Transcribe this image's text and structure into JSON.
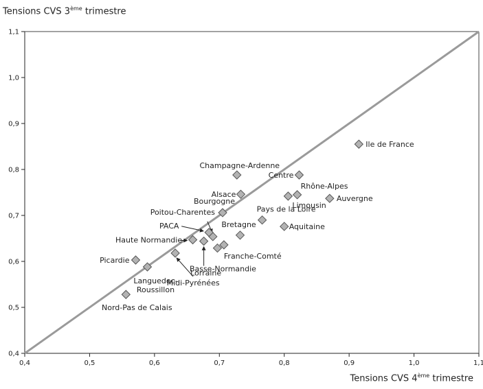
{
  "chart_data": {
    "type": "scatter",
    "ylabel": {
      "prefix": "Tensions CVS 3",
      "sup": "ème",
      "suffix": " trimestre"
    },
    "xlabel": {
      "prefix": "Tensions CVS 4",
      "sup": "ème",
      "suffix": " trimestre"
    },
    "xlim": [
      0.4,
      1.1
    ],
    "ylim": [
      0.4,
      1.1
    ],
    "xticks": [
      "0,4",
      "0,5",
      "0,6",
      "0,7",
      "0,8",
      "0,9",
      "1,0",
      "1,1"
    ],
    "yticks": [
      "0,4",
      "0,5",
      "0,6",
      "0,7",
      "0,8",
      "0,9",
      "1,0",
      "1,1"
    ],
    "grid": false,
    "reference_line": {
      "from": [
        0.4,
        0.4
      ],
      "to": [
        1.1,
        1.1
      ]
    },
    "marker_color": "#b3b3b3",
    "line_color": "#9a9a9a",
    "points": [
      {
        "label": "Ile de France",
        "x": 0.915,
        "y": 0.855
      },
      {
        "label": "Centre",
        "x": 0.823,
        "y": 0.788
      },
      {
        "label": "Champagne-Ardenne",
        "x": 0.727,
        "y": 0.788
      },
      {
        "label": "Rhône-Alpes",
        "x": 0.82,
        "y": 0.745
      },
      {
        "label": "Limousin",
        "x": 0.806,
        "y": 0.742
      },
      {
        "label": "Auvergne",
        "x": 0.87,
        "y": 0.737
      },
      {
        "label": "Alsace",
        "x": 0.733,
        "y": 0.746
      },
      {
        "label": "Bourgogne",
        "x": 0.705,
        "y": 0.706
      },
      {
        "label": "Pays de la Loire",
        "x": 0.766,
        "y": 0.69
      },
      {
        "label": "Aquitaine",
        "x": 0.8,
        "y": 0.676
      },
      {
        "label": "Bretagne",
        "x": 0.732,
        "y": 0.657
      },
      {
        "label": "Poitou-Charentes",
        "x": 0.69,
        "y": 0.654
      },
      {
        "label": "PACA",
        "x": 0.684,
        "y": 0.663
      },
      {
        "label": "Franche-Comté",
        "x": 0.707,
        "y": 0.636
      },
      {
        "label": "Basse-Normandie",
        "x": 0.697,
        "y": 0.629
      },
      {
        "label": "Lorraine",
        "x": 0.676,
        "y": 0.644
      },
      {
        "label": "Haute Normandie",
        "x": 0.659,
        "y": 0.647
      },
      {
        "label": "Midi-Pyrénées",
        "x": 0.632,
        "y": 0.618
      },
      {
        "label": "Picardie",
        "x": 0.571,
        "y": 0.603
      },
      {
        "label": "Languedoc-Roussillon",
        "label_lines": [
          "Languedoc-",
          "Roussillon"
        ],
        "x": 0.589,
        "y": 0.588
      },
      {
        "label": "Nord-Pas de Calais",
        "x": 0.556,
        "y": 0.528
      }
    ]
  }
}
